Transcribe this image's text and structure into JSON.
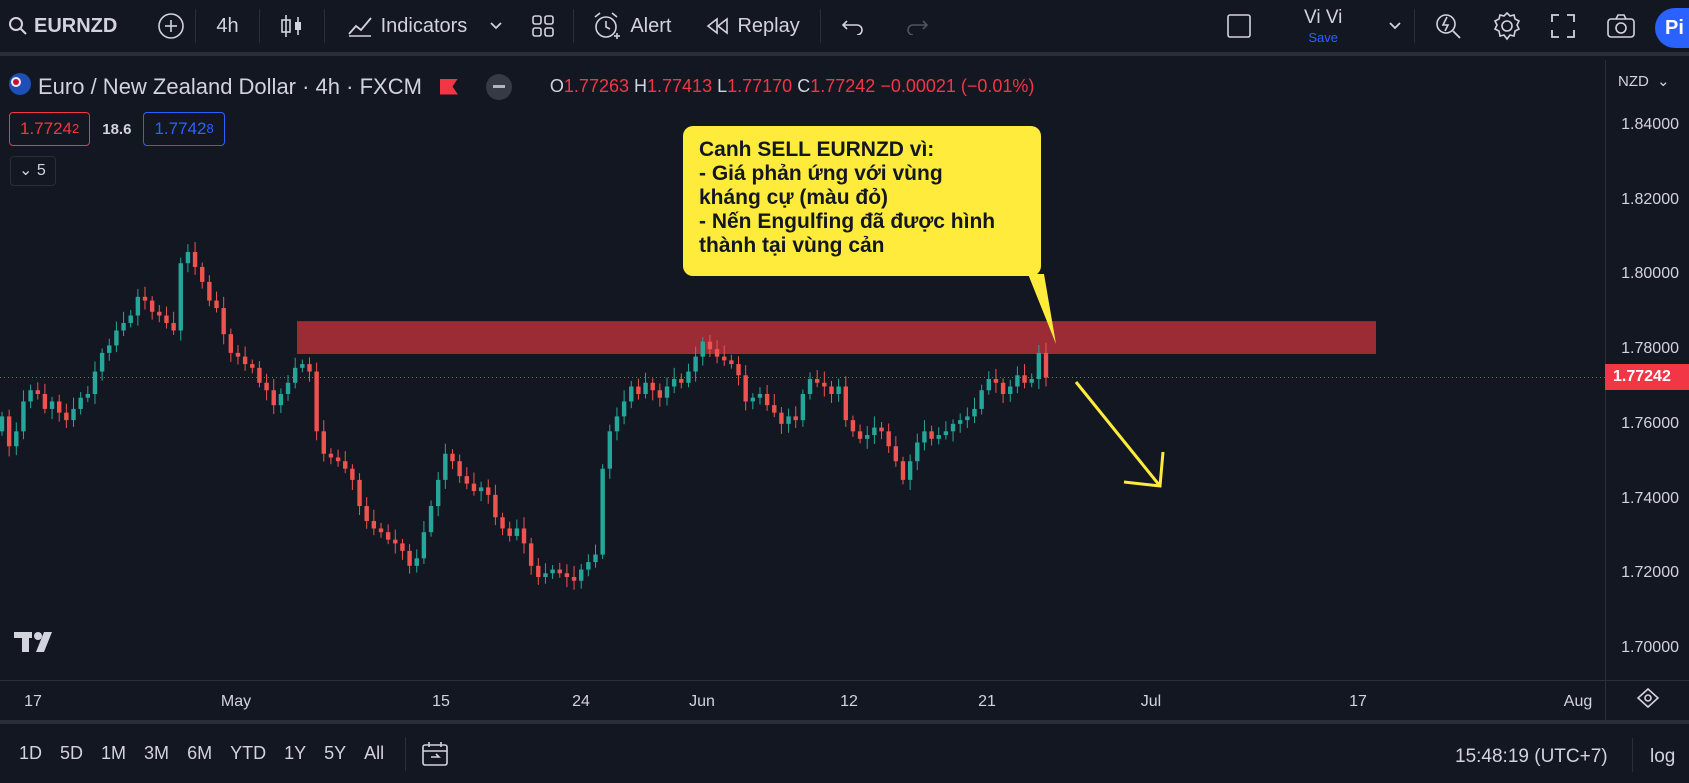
{
  "toolbar": {
    "symbol": "EURNZD",
    "interval": "4h",
    "indicators_label": "Indicators",
    "alert_label": "Alert",
    "replay_label": "Replay",
    "user_name": "Vi Vi",
    "save_label": "Save",
    "publish_label": "Pi"
  },
  "legend": {
    "title": "Euro / New Zealand Dollar · 4h · FXCM",
    "open_label": "O",
    "open": "1.77263",
    "high_label": "H",
    "high": "1.77413",
    "low_label": "L",
    "low": "1.77170",
    "close_label": "C",
    "close": "1.77242",
    "change": "−0.00021 (−0.01%)",
    "bid_main": "1.7724",
    "bid_sup": "2",
    "spread": "18.6",
    "ask_main": "1.7742",
    "ask_sup": "8",
    "collapse_count": "5"
  },
  "annotation": {
    "text": "Canh SELL EURNZD vì:\n- Giá phản ứng với vùng\nkháng cự (màu đỏ)\n- Nến Engulfing đã được hình\nthành tại vùng cản"
  },
  "price_axis": {
    "currency": "NZD",
    "ticks": [
      "1.84000",
      "1.82000",
      "1.80000",
      "1.78000",
      "1.76000",
      "1.74000",
      "1.72000",
      "1.70000"
    ],
    "last_price": "1.77242"
  },
  "time_axis": {
    "ticks": [
      "17",
      "May",
      "15",
      "24",
      "Jun",
      "12",
      "21",
      "Jul",
      "17",
      "Aug"
    ]
  },
  "bottombar": {
    "ranges": [
      "1D",
      "5D",
      "1M",
      "3M",
      "6M",
      "YTD",
      "1Y",
      "5Y",
      "All"
    ],
    "clock": "15:48:19 (UTC+7)",
    "log_label": "log"
  },
  "colors": {
    "background": "#131722",
    "up": "#26a69a",
    "down": "#ef5350",
    "resistance_zone": "#9b2c36",
    "annotation": "#ffeb3b",
    "accent": "#2962ff"
  },
  "chart_data": {
    "type": "candlestick",
    "symbol": "EURNZD",
    "ylim": [
      1.69,
      1.85
    ],
    "resistance_zone": [
      1.7787,
      1.7875
    ],
    "last_price": 1.77242,
    "closes": [
      1.762,
      1.754,
      1.758,
      1.766,
      1.769,
      1.768,
      1.764,
      1.766,
      1.763,
      1.761,
      1.764,
      1.767,
      1.768,
      1.774,
      1.779,
      1.781,
      1.785,
      1.787,
      1.789,
      1.794,
      1.793,
      1.79,
      1.789,
      1.787,
      1.785,
      1.803,
      1.806,
      1.802,
      1.798,
      1.793,
      1.791,
      1.784,
      1.779,
      1.778,
      1.776,
      1.775,
      1.771,
      1.769,
      1.765,
      1.768,
      1.771,
      1.775,
      1.776,
      1.774,
      1.758,
      1.752,
      1.751,
      1.75,
      1.748,
      1.745,
      1.738,
      1.734,
      1.732,
      1.731,
      1.729,
      1.728,
      1.726,
      1.722,
      1.724,
      1.731,
      1.738,
      1.745,
      1.752,
      1.75,
      1.746,
      1.744,
      1.742,
      1.743,
      1.741,
      1.735,
      1.732,
      1.73,
      1.732,
      1.728,
      1.722,
      1.719,
      1.72,
      1.721,
      1.72,
      1.719,
      1.718,
      1.721,
      1.723,
      1.725,
      1.748,
      1.758,
      1.762,
      1.766,
      1.77,
      1.768,
      1.771,
      1.769,
      1.767,
      1.77,
      1.772,
      1.771,
      1.774,
      1.778,
      1.782,
      1.78,
      1.778,
      1.777,
      1.776,
      1.773,
      1.766,
      1.767,
      1.768,
      1.765,
      1.763,
      1.76,
      1.762,
      1.761,
      1.768,
      1.772,
      1.771,
      1.77,
      1.768,
      1.77,
      1.761,
      1.758,
      1.756,
      1.757,
      1.759,
      1.758,
      1.754,
      1.75,
      1.745,
      1.75,
      1.755,
      1.758,
      1.756,
      1.757,
      1.758,
      1.76,
      1.761,
      1.762,
      1.764,
      1.769,
      1.772,
      1.771,
      1.768,
      1.77,
      1.773,
      1.771,
      1.772,
      1.779,
      1.7724
    ]
  }
}
